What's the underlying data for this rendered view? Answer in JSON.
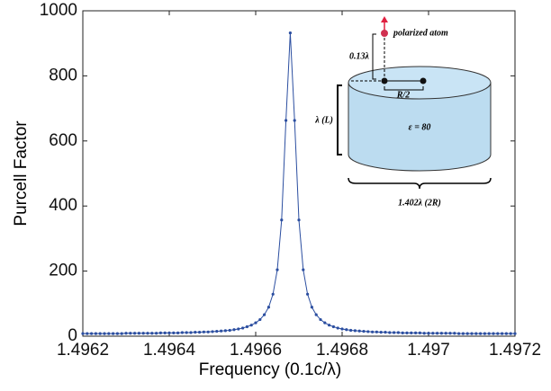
{
  "chart_data": {
    "type": "line",
    "xlabel": "Frequency (0.1c/λ)",
    "ylabel": "Purcell Factor",
    "x": [
      1.4962,
      1.49621,
      1.49622,
      1.49623,
      1.49624,
      1.49625,
      1.49626,
      1.49627,
      1.49628,
      1.49629,
      1.4963,
      1.49631,
      1.49632,
      1.49633,
      1.49634,
      1.49635,
      1.49636,
      1.49637,
      1.49638,
      1.49639,
      1.4964,
      1.49641,
      1.49642,
      1.49643,
      1.49644,
      1.49645,
      1.49646,
      1.49647,
      1.49648,
      1.49649,
      1.4965,
      1.49651,
      1.49652,
      1.49653,
      1.49654,
      1.49655,
      1.49656,
      1.49657,
      1.49658,
      1.49659,
      1.4966,
      1.49661,
      1.49662,
      1.49663,
      1.49664,
      1.49665,
      1.49666,
      1.49667,
      1.49668,
      1.49669,
      1.4967,
      1.49671,
      1.49672,
      1.49673,
      1.49674,
      1.49675,
      1.49676,
      1.49677,
      1.49678,
      1.49679,
      1.4968,
      1.49681,
      1.49682,
      1.49683,
      1.49684,
      1.49685,
      1.49686,
      1.49687,
      1.49688,
      1.49689,
      1.4969,
      1.49691,
      1.49692,
      1.49693,
      1.49694,
      1.49695,
      1.49696,
      1.49697,
      1.49698,
      1.49699,
      1.497,
      1.49701,
      1.49702,
      1.49703,
      1.49704,
      1.49705,
      1.49706,
      1.49707,
      1.49708,
      1.49709,
      1.4971,
      1.49711,
      1.49712,
      1.49713,
      1.49714,
      1.49715,
      1.49716,
      1.49717,
      1.49718,
      1.49719,
      1.4972
    ],
    "series": [
      {
        "color": "#2b4ea0",
        "values": [
          8,
          8,
          8,
          8,
          8,
          8,
          8,
          8,
          8,
          8,
          9,
          9,
          9,
          9,
          9,
          9,
          9,
          9,
          10,
          10,
          10,
          10,
          10,
          11,
          11,
          11,
          12,
          12,
          13,
          13,
          14,
          15,
          16,
          17,
          18,
          20,
          22,
          25,
          29,
          34,
          41,
          51,
          66,
          89,
          129,
          204,
          357,
          663,
          932,
          663,
          357,
          204,
          129,
          89,
          66,
          51,
          41,
          34,
          29,
          25,
          22,
          20,
          18,
          17,
          16,
          15,
          14,
          13,
          13,
          12,
          12,
          11,
          11,
          11,
          10,
          10,
          10,
          10,
          10,
          9,
          9,
          9,
          9,
          9,
          9,
          9,
          9,
          8,
          8,
          8,
          8,
          8,
          8,
          8,
          8,
          8,
          8,
          8,
          8,
          8,
          8
        ]
      }
    ],
    "xlim": [
      1.4962,
      1.4972
    ],
    "xticks": [
      1.4962,
      1.4964,
      1.4966,
      1.4968,
      1.497,
      1.4972
    ],
    "ylim": [
      0,
      1000
    ],
    "yticks": [
      0,
      200,
      400,
      600,
      800,
      1000
    ],
    "grid": false
  },
  "inset": {
    "atom": "polarized atom",
    "height": "0.13λ",
    "offset": "R/2",
    "length": "λ (L)",
    "permittivity": "ε = 80",
    "diameter": "1.402λ (2R)"
  }
}
